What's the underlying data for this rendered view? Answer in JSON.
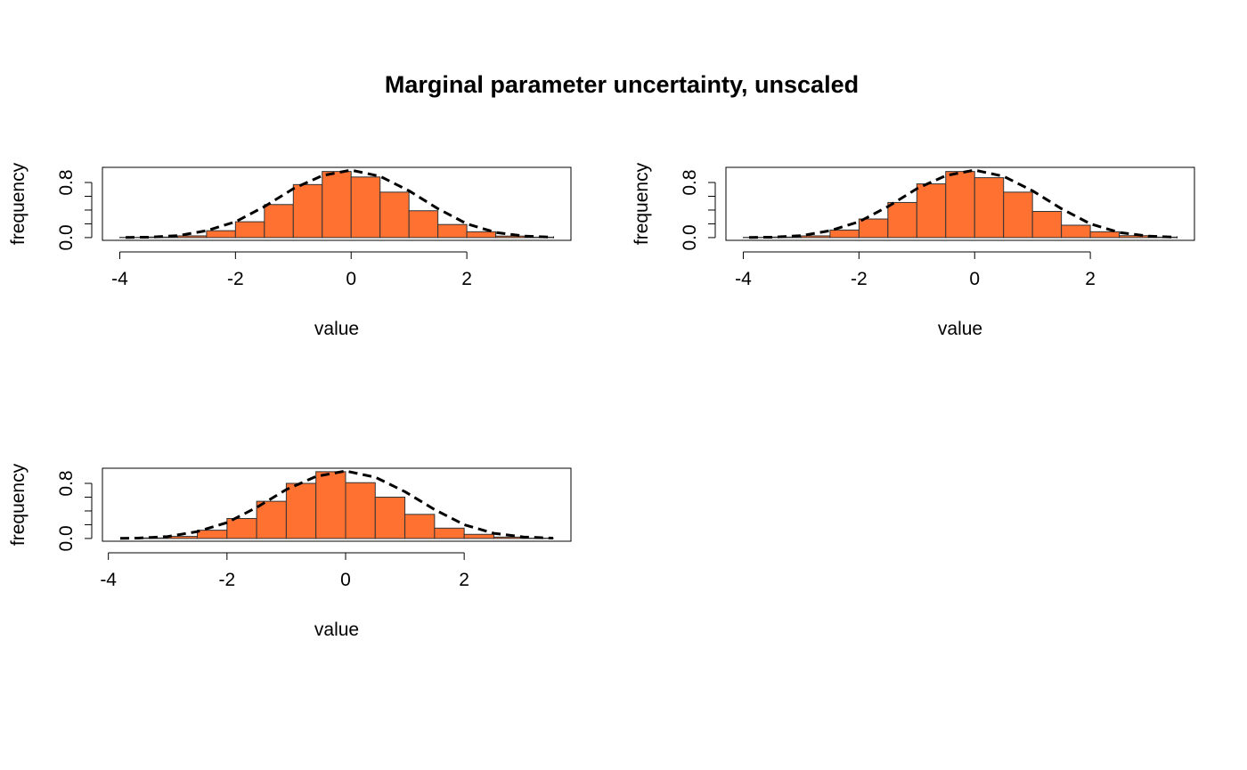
{
  "figure": {
    "title": "Marginal parameter uncertainty, unscaled"
  },
  "colors": {
    "bar_fill": "#FF7131",
    "bar_stroke": "#333333",
    "curve": "#000000",
    "axis": "#000000"
  },
  "chart_data": [
    {
      "type": "bar",
      "panel": "top-left",
      "xlabel": "value",
      "ylabel": "frequency",
      "xlim": [
        -4.3,
        3.8
      ],
      "ylim": [
        -0.04,
        1.02
      ],
      "x_ticks": [
        -4,
        -2,
        0,
        2
      ],
      "y_ticks": [
        0.0,
        0.2,
        0.4,
        0.6,
        0.8
      ],
      "y_tick_labels": [
        "0.0",
        "",
        "",
        "",
        "0.8"
      ],
      "bin_edges": [
        -4.0,
        -3.5,
        -3.0,
        -2.5,
        -2.0,
        -1.5,
        -1.0,
        -0.5,
        0.0,
        0.5,
        1.0,
        1.5,
        2.0,
        2.5,
        3.0,
        3.5
      ],
      "values": [
        0.003,
        0.008,
        0.025,
        0.1,
        0.23,
        0.48,
        0.77,
        0.96,
        0.88,
        0.66,
        0.39,
        0.19,
        0.085,
        0.022,
        0.006
      ],
      "density_curve": {
        "x": [
          -3.9,
          -3.5,
          -3.0,
          -2.5,
          -2.0,
          -1.5,
          -1.0,
          -0.5,
          0.0,
          0.5,
          1.0,
          1.5,
          2.0,
          2.5,
          3.0,
          3.5
        ],
        "y": [
          0.002,
          0.006,
          0.028,
          0.1,
          0.23,
          0.45,
          0.71,
          0.9,
          0.98,
          0.89,
          0.68,
          0.42,
          0.2,
          0.075,
          0.022,
          0.005
        ]
      }
    },
    {
      "type": "bar",
      "panel": "top-right",
      "xlabel": "value",
      "ylabel": "frequency",
      "xlim": [
        -4.3,
        3.8
      ],
      "ylim": [
        -0.04,
        1.02
      ],
      "x_ticks": [
        -4,
        -2,
        0,
        2
      ],
      "y_ticks": [
        0.0,
        0.2,
        0.4,
        0.6,
        0.8
      ],
      "y_tick_labels": [
        "0.0",
        "",
        "",
        "",
        "0.8"
      ],
      "bin_edges": [
        -4.0,
        -3.5,
        -3.0,
        -2.5,
        -2.0,
        -1.5,
        -1.0,
        -0.5,
        0.0,
        0.5,
        1.0,
        1.5,
        2.0,
        2.5,
        3.0,
        3.5
      ],
      "values": [
        0.003,
        0.008,
        0.025,
        0.11,
        0.27,
        0.51,
        0.78,
        0.96,
        0.87,
        0.66,
        0.38,
        0.18,
        0.085,
        0.028,
        0.007
      ],
      "density_curve": {
        "x": [
          -3.9,
          -3.5,
          -3.0,
          -2.5,
          -2.0,
          -1.5,
          -1.0,
          -0.5,
          0.0,
          0.5,
          1.0,
          1.5,
          2.0,
          2.5,
          3.0,
          3.5
        ],
        "y": [
          0.002,
          0.006,
          0.028,
          0.1,
          0.23,
          0.45,
          0.71,
          0.9,
          0.98,
          0.89,
          0.68,
          0.42,
          0.2,
          0.075,
          0.022,
          0.005
        ]
      }
    },
    {
      "type": "bar",
      "panel": "bottom-left",
      "xlabel": "value",
      "ylabel": "frequency",
      "xlim": [
        -4.1,
        3.8
      ],
      "ylim": [
        -0.04,
        1.02
      ],
      "x_ticks": [
        -4,
        -2,
        0,
        2
      ],
      "y_ticks": [
        0.0,
        0.2,
        0.4,
        0.6,
        0.8
      ],
      "y_tick_labels": [
        "0.0",
        "",
        "",
        "",
        "0.8"
      ],
      "bin_edges": [
        -3.5,
        -3.0,
        -2.5,
        -2.0,
        -1.5,
        -1.0,
        -0.5,
        0.0,
        0.5,
        1.0,
        1.5,
        2.0,
        2.5,
        3.0,
        3.5
      ],
      "values": [
        0.008,
        0.03,
        0.12,
        0.29,
        0.54,
        0.8,
        0.97,
        0.81,
        0.6,
        0.35,
        0.15,
        0.06,
        0.02,
        0.005
      ],
      "density_curve": {
        "x": [
          -3.8,
          -3.5,
          -3.0,
          -2.5,
          -2.0,
          -1.5,
          -1.0,
          -0.5,
          0.0,
          0.5,
          1.0,
          1.5,
          2.0,
          2.5,
          3.0,
          3.5
        ],
        "y": [
          0.002,
          0.006,
          0.028,
          0.1,
          0.23,
          0.45,
          0.71,
          0.9,
          0.98,
          0.89,
          0.68,
          0.42,
          0.2,
          0.075,
          0.022,
          0.005
        ]
      }
    }
  ]
}
